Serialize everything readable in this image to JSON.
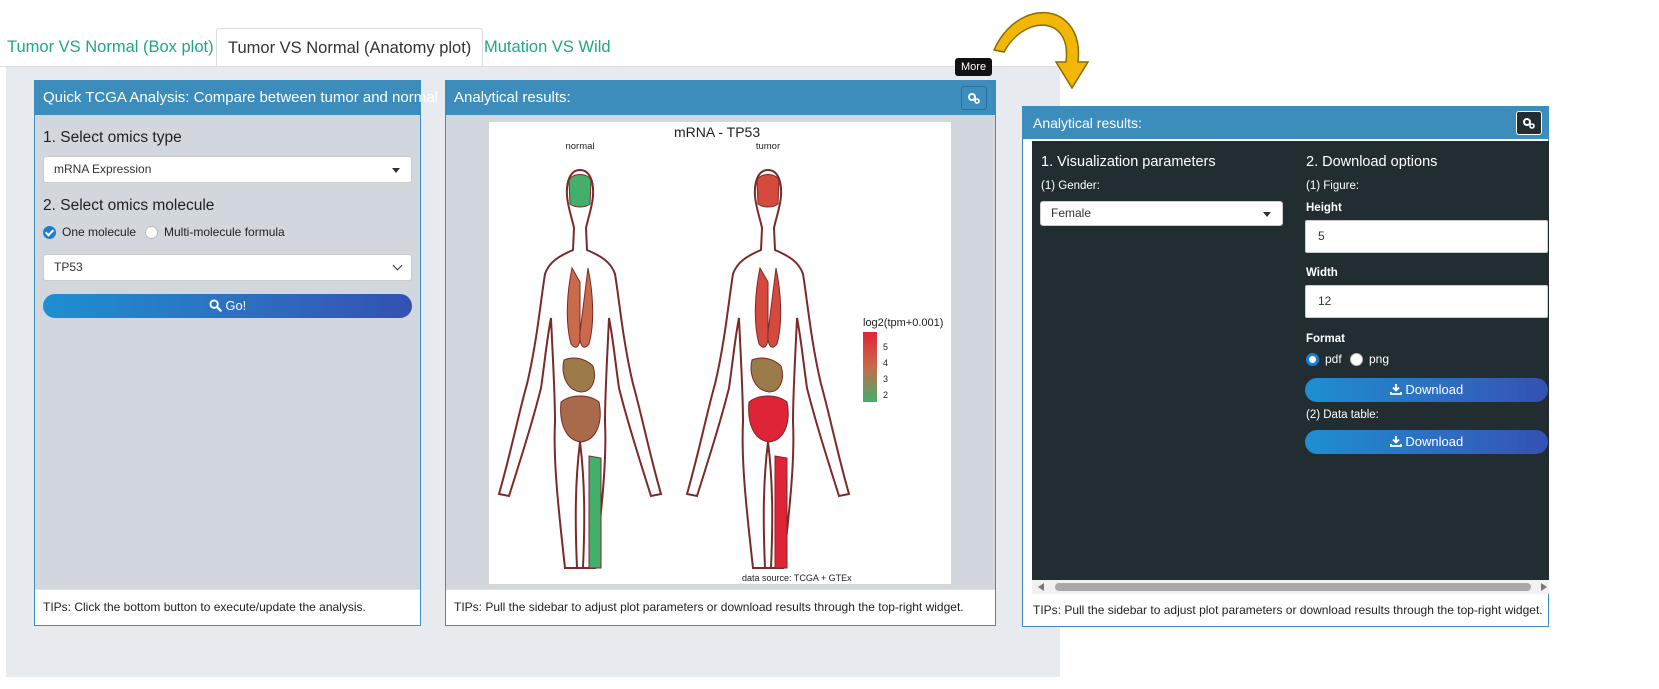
{
  "tabs": [
    {
      "label": "Tumor VS Normal (Box plot)"
    },
    {
      "label": "Tumor VS Normal (Anatomy plot)"
    },
    {
      "label": "Mutation VS Wild"
    }
  ],
  "left_box": {
    "title": "Quick TCGA Analysis: Compare between tumor and normal",
    "section1": "1. Select omics type",
    "omics_type_value": "mRNA Expression",
    "section2": "2. Select omics molecule",
    "radio_options": [
      "One molecule",
      "Multi-molecule formula"
    ],
    "radio_selected": "One molecule",
    "molecule_value": "TP53",
    "go_label": "Go!",
    "tips": "TIPs: Click the bottom button to execute/update the analysis."
  },
  "middle_box": {
    "title": "Analytical results:",
    "tooltip": "More",
    "tips": "TIPs: Pull the sidebar to adjust plot parameters or download results through the top-right widget."
  },
  "plot": {
    "title": "mRNA - TP53",
    "panel_labels": [
      "normal",
      "tumor"
    ],
    "legend_title": "log2(tpm+0.001)",
    "legend_ticks": [
      "5",
      "4",
      "3",
      "2"
    ],
    "caption": "data source: TCGA + GTEx",
    "colors": {
      "high": "#e02438",
      "mid": "#c96a4a",
      "low": "#42b06a",
      "outline": "#7a2a2a"
    }
  },
  "right_panel": {
    "title": "Analytical results:",
    "viz_title": "1. Visualization parameters",
    "gender_label": "(1) Gender:",
    "gender_value": "Female",
    "download_title": "2. Download options",
    "figure_label": "(1) Figure:",
    "height_label": "Height",
    "height_value": "5",
    "width_label": "Width",
    "width_value": "12",
    "format_label": "Format",
    "format_options": [
      "pdf",
      "png"
    ],
    "format_selected": "pdf",
    "download_label": "Download",
    "data_table_label": "(2) Data table:",
    "download2_label": "Download",
    "tips": "TIPs: Pull the sidebar to adjust plot parameters or download results through the top-right widget."
  },
  "colors": {
    "accent": "#3c8dbc",
    "tab_link": "#1fa689",
    "panel_bg": "#d2d6dd",
    "dark_panel": "#222d32",
    "arrow": "#f2b705"
  }
}
